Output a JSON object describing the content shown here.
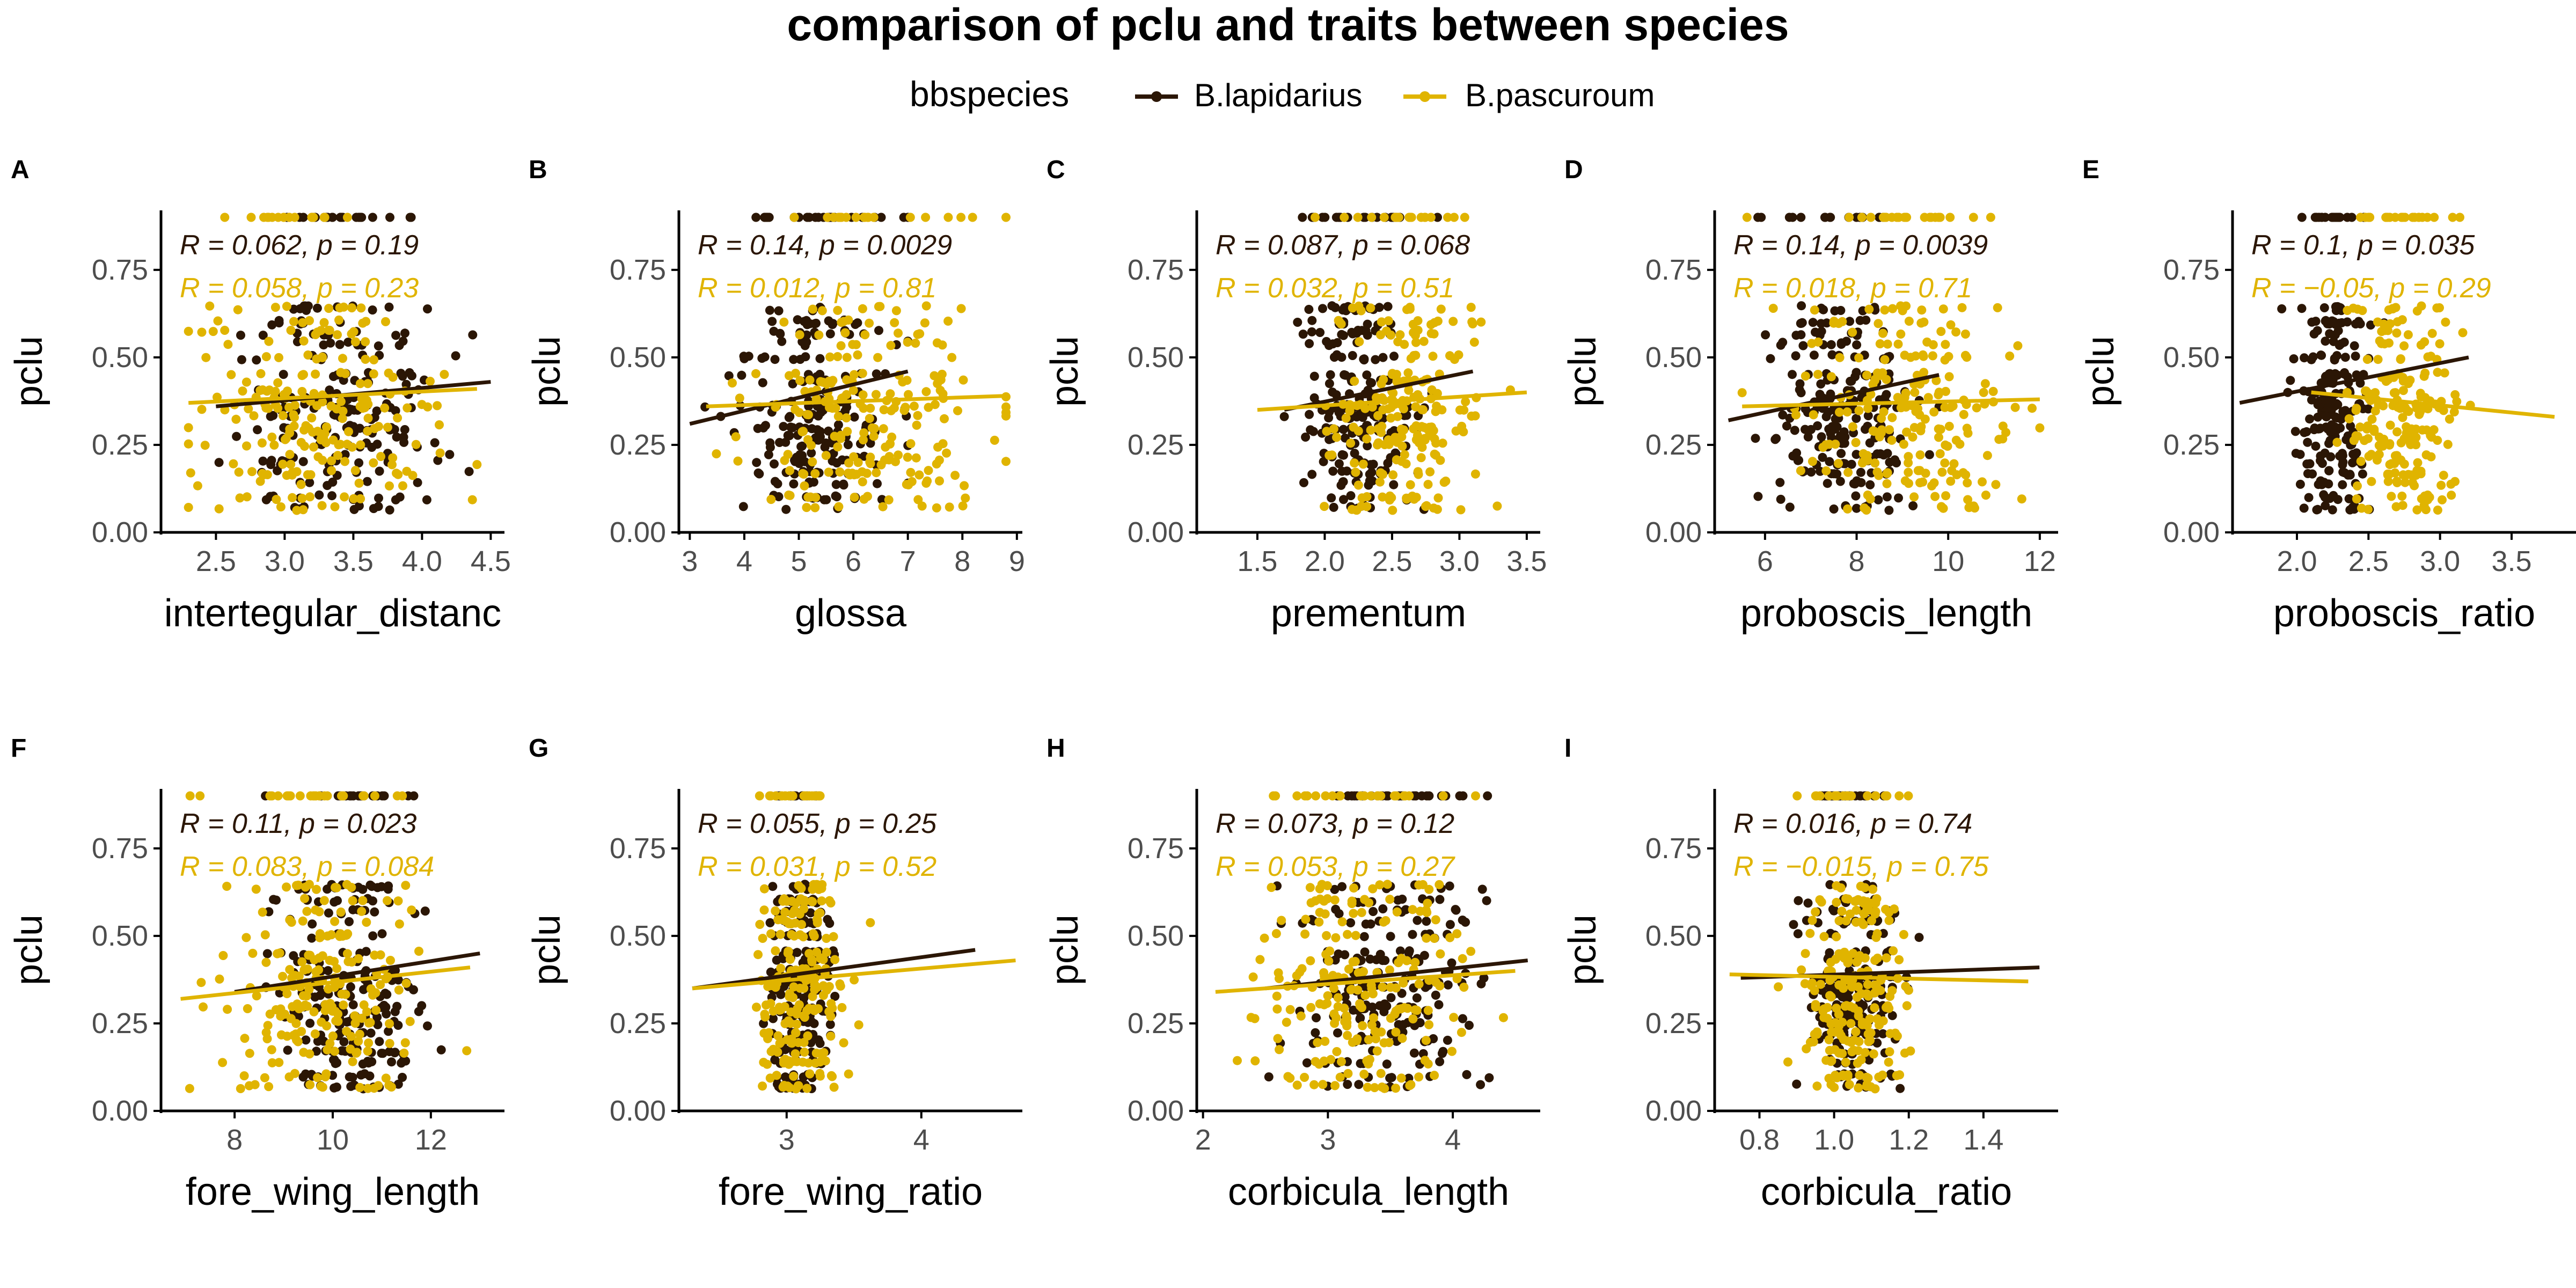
{
  "title": "comparison of pclu and traits between species",
  "legend": {
    "title": "bbspecies",
    "items": [
      {
        "label": "B.lapidarius",
        "color": "#2b1605"
      },
      {
        "label": "B.pascuroum",
        "color": "#e0b400"
      }
    ]
  },
  "colors": {
    "lapidarius": "#2b1605",
    "pascuroum": "#e0b400",
    "axis": "#000000",
    "tick_text": "#4d4d4d"
  },
  "chart_data": [
    {
      "type": "scatter",
      "tag": "A",
      "xlabel": "intertegular_distanc",
      "ylabel": "pclu",
      "xlim": [
        2.1,
        4.6
      ],
      "ylim": [
        0.0,
        0.92
      ],
      "xticks": [
        2.5,
        3.0,
        3.5,
        4.0,
        4.5
      ],
      "xtick_labels": [
        "2.5",
        "3.0",
        "3.5",
        "4.0",
        "4.5"
      ],
      "yticks": [
        0.0,
        0.25,
        0.5,
        0.75
      ],
      "ytick_labels": [
        "0.00",
        "0.25",
        "0.50",
        "0.75"
      ],
      "series": [
        {
          "key": "lapidarius",
          "x_center": 3.4,
          "x_spread": 0.35,
          "x_min": 2.5,
          "x_max": 4.5,
          "fit_x": [
            2.5,
            4.5
          ],
          "fit_y": [
            0.36,
            0.43
          ],
          "stat": "R = 0.062, p = 0.19"
        },
        {
          "key": "pascuroum",
          "x_center": 3.2,
          "x_spread": 0.4,
          "x_min": 2.3,
          "x_max": 4.4,
          "fit_x": [
            2.3,
            4.4
          ],
          "fit_y": [
            0.37,
            0.41
          ],
          "stat": "R = 0.058, p = 0.23"
        }
      ]
    },
    {
      "type": "scatter",
      "tag": "B",
      "xlabel": "glossa",
      "ylabel": "pclu",
      "xlim": [
        2.8,
        9.1
      ],
      "ylim": [
        0.0,
        0.92
      ],
      "xticks": [
        3,
        4,
        5,
        6,
        7,
        8,
        9
      ],
      "xtick_labels": [
        "3",
        "4",
        "5",
        "6",
        "7",
        "8",
        "9"
      ],
      "yticks": [
        0.0,
        0.25,
        0.5,
        0.75
      ],
      "ytick_labels": [
        "0.00",
        "0.25",
        "0.50",
        "0.75"
      ],
      "series": [
        {
          "key": "lapidarius",
          "x_center": 5.3,
          "x_spread": 0.7,
          "x_min": 3.0,
          "x_max": 7.0,
          "fit_x": [
            3.0,
            7.0
          ],
          "fit_y": [
            0.31,
            0.46
          ],
          "stat": "R = 0.14, p = 0.0029"
        },
        {
          "key": "pascuroum",
          "x_center": 6.3,
          "x_spread": 1.1,
          "x_min": 3.3,
          "x_max": 8.8,
          "fit_x": [
            3.3,
            8.8
          ],
          "fit_y": [
            0.36,
            0.39
          ],
          "stat": "R = 0.012, p = 0.81"
        }
      ]
    },
    {
      "type": "scatter",
      "tag": "C",
      "xlabel": "prementum",
      "ylabel": "pclu",
      "xlim": [
        1.05,
        3.6
      ],
      "ylim": [
        0.0,
        0.92
      ],
      "xticks": [
        1.5,
        2.0,
        2.5,
        3.0,
        3.5
      ],
      "xtick_labels": [
        "1.5",
        "2.0",
        "2.5",
        "3.0",
        "3.5"
      ],
      "yticks": [
        0.0,
        0.25,
        0.5,
        0.75
      ],
      "ytick_labels": [
        "0.00",
        "0.25",
        "0.50",
        "0.75"
      ],
      "series": [
        {
          "key": "lapidarius",
          "x_center": 2.25,
          "x_spread": 0.22,
          "x_min": 1.7,
          "x_max": 3.1,
          "fit_x": [
            1.7,
            3.1
          ],
          "fit_y": [
            0.35,
            0.46
          ],
          "stat": "R = 0.087, p = 0.068"
        },
        {
          "key": "pascuroum",
          "x_center": 2.55,
          "x_spread": 0.3,
          "x_min": 1.5,
          "x_max": 3.5,
          "fit_x": [
            1.5,
            3.5
          ],
          "fit_y": [
            0.35,
            0.4
          ],
          "stat": "R = 0.032, p = 0.51"
        }
      ]
    },
    {
      "type": "scatter",
      "tag": "D",
      "xlabel": "proboscis_length",
      "ylabel": "pclu",
      "xlim": [
        4.9,
        12.4
      ],
      "ylim": [
        0.0,
        0.92
      ],
      "xticks": [
        6,
        8,
        10,
        12
      ],
      "xtick_labels": [
        "6",
        "8",
        "10",
        "12"
      ],
      "yticks": [
        0.0,
        0.25,
        0.5,
        0.75
      ],
      "ytick_labels": [
        "0.00",
        "0.25",
        "0.50",
        "0.75"
      ],
      "series": [
        {
          "key": "lapidarius",
          "x_center": 7.6,
          "x_spread": 0.8,
          "x_min": 5.2,
          "x_max": 9.8,
          "fit_x": [
            5.2,
            9.8
          ],
          "fit_y": [
            0.32,
            0.45
          ],
          "stat": "R = 0.14, p = 0.0039"
        },
        {
          "key": "pascuroum",
          "x_center": 9.1,
          "x_spread": 1.2,
          "x_min": 5.5,
          "x_max": 12.0,
          "fit_x": [
            5.5,
            12.0
          ],
          "fit_y": [
            0.36,
            0.38
          ],
          "stat": "R = 0.018, p = 0.71"
        }
      ]
    },
    {
      "type": "scatter",
      "tag": "E",
      "xlabel": "proboscis_ratio",
      "ylabel": "pclu",
      "xlim": [
        1.55,
        3.95
      ],
      "ylim": [
        0.0,
        0.92
      ],
      "xticks": [
        2.0,
        2.5,
        3.0,
        3.5
      ],
      "xtick_labels": [
        "2.0",
        "2.5",
        "3.0",
        "3.5"
      ],
      "yticks": [
        0.0,
        0.25,
        0.5,
        0.75
      ],
      "ytick_labels": [
        "0.00",
        "0.25",
        "0.50",
        "0.75"
      ],
      "series": [
        {
          "key": "lapidarius",
          "x_center": 2.25,
          "x_spread": 0.13,
          "x_min": 1.6,
          "x_max": 3.2,
          "fit_x": [
            1.6,
            3.2
          ],
          "fit_y": [
            0.37,
            0.5
          ],
          "stat": "R = 0.1, p = 0.035"
        },
        {
          "key": "pascuroum",
          "x_center": 2.75,
          "x_spread": 0.2,
          "x_min": 2.1,
          "x_max": 3.8,
          "fit_x": [
            2.1,
            3.8
          ],
          "fit_y": [
            0.4,
            0.33
          ],
          "stat": "R = −0.05, p = 0.29"
        }
      ]
    },
    {
      "type": "scatter",
      "tag": "F",
      "xlabel": "fore_wing_length",
      "ylabel": "pclu",
      "xlim": [
        6.5,
        13.5
      ],
      "ylim": [
        0.0,
        0.92
      ],
      "xticks": [
        8,
        10,
        12
      ],
      "xtick_labels": [
        "8",
        "10",
        "12"
      ],
      "yticks": [
        0.0,
        0.25,
        0.5,
        0.75
      ],
      "ytick_labels": [
        "0.00",
        "0.25",
        "0.50",
        "0.75"
      ],
      "series": [
        {
          "key": "lapidarius",
          "x_center": 10.4,
          "x_spread": 0.8,
          "x_min": 8.0,
          "x_max": 13.0,
          "fit_x": [
            8.0,
            13.0
          ],
          "fit_y": [
            0.34,
            0.45
          ],
          "stat": "R = 0.11, p = 0.023"
        },
        {
          "key": "pascuroum",
          "x_center": 9.9,
          "x_spread": 1.0,
          "x_min": 6.9,
          "x_max": 12.8,
          "fit_x": [
            6.9,
            12.8
          ],
          "fit_y": [
            0.32,
            0.41
          ],
          "stat": "R = 0.083, p = 0.084"
        }
      ]
    },
    {
      "type": "scatter",
      "tag": "G",
      "xlabel": "fore_wing_ratio",
      "ylabel": "pclu",
      "xlim": [
        2.2,
        4.75
      ],
      "ylim": [
        0.0,
        0.92
      ],
      "xticks": [
        3,
        4
      ],
      "xtick_labels": [
        "3",
        "4"
      ],
      "yticks": [
        0.0,
        0.25,
        0.5,
        0.75
      ],
      "ytick_labels": [
        "0.00",
        "0.25",
        "0.50",
        "0.75"
      ],
      "series": [
        {
          "key": "lapidarius",
          "x_center": 3.1,
          "x_spread": 0.12,
          "x_min": 2.3,
          "x_max": 4.4,
          "fit_x": [
            2.3,
            4.4
          ],
          "fit_y": [
            0.35,
            0.46
          ],
          "stat": "R = 0.055, p = 0.25"
        },
        {
          "key": "pascuroum",
          "x_center": 3.1,
          "x_spread": 0.15,
          "x_min": 2.3,
          "x_max": 4.7,
          "fit_x": [
            2.3,
            4.7
          ],
          "fit_y": [
            0.35,
            0.43
          ],
          "stat": "R = 0.031, p = 0.52"
        }
      ]
    },
    {
      "type": "scatter",
      "tag": "H",
      "xlabel": "corbicula_length",
      "ylabel": "pclu",
      "xlim": [
        1.95,
        4.7
      ],
      "ylim": [
        0.0,
        0.92
      ],
      "xticks": [
        2,
        3,
        4
      ],
      "xtick_labels": [
        "2",
        "3",
        "4"
      ],
      "yticks": [
        0.0,
        0.25,
        0.5,
        0.75
      ],
      "ytick_labels": [
        "0.00",
        "0.25",
        "0.50",
        "0.75"
      ],
      "series": [
        {
          "key": "lapidarius",
          "x_center": 3.5,
          "x_spread": 0.35,
          "x_min": 2.5,
          "x_max": 4.6,
          "fit_x": [
            2.5,
            4.6
          ],
          "fit_y": [
            0.35,
            0.43
          ],
          "stat": "R = 0.073, p = 0.12"
        },
        {
          "key": "pascuroum",
          "x_center": 3.3,
          "x_spread": 0.4,
          "x_min": 2.1,
          "x_max": 4.5,
          "fit_x": [
            2.1,
            4.5
          ],
          "fit_y": [
            0.34,
            0.4
          ],
          "stat": "R = 0.053, p = 0.27"
        }
      ]
    },
    {
      "type": "scatter",
      "tag": "I",
      "xlabel": "corbicula_ratio",
      "ylabel": "pclu",
      "xlim": [
        0.68,
        1.6
      ],
      "ylim": [
        0.0,
        0.92
      ],
      "xticks": [
        0.8,
        1.0,
        1.2,
        1.4
      ],
      "xtick_labels": [
        "0.8",
        "1.0",
        "1.2",
        "1.4"
      ],
      "yticks": [
        0.0,
        0.25,
        0.5,
        0.75
      ],
      "ytick_labels": [
        "0.00",
        "0.25",
        "0.50",
        "0.75"
      ],
      "series": [
        {
          "key": "lapidarius",
          "x_center": 1.05,
          "x_spread": 0.06,
          "x_min": 0.75,
          "x_max": 1.55,
          "fit_x": [
            0.75,
            1.55
          ],
          "fit_y": [
            0.38,
            0.41
          ],
          "stat": "R = 0.016, p = 0.74"
        },
        {
          "key": "pascuroum",
          "x_center": 1.06,
          "x_spread": 0.07,
          "x_min": 0.72,
          "x_max": 1.52,
          "fit_x": [
            0.72,
            1.52
          ],
          "fit_y": [
            0.39,
            0.37
          ],
          "stat": "R = −0.015, p = 0.75"
        }
      ]
    }
  ]
}
